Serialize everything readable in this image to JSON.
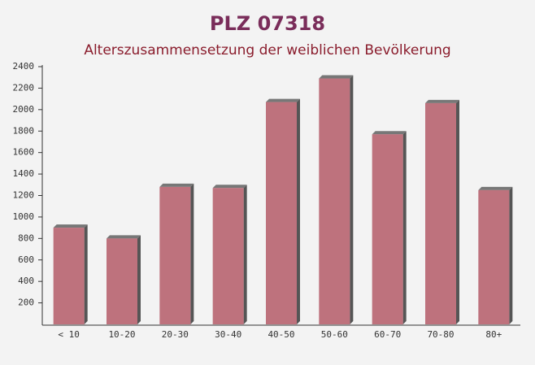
{
  "chart_data": {
    "type": "bar",
    "title": "PLZ 07318",
    "subtitle": "Alterszusammensetzung der weiblichen Bevölkerung",
    "categories": [
      "< 10",
      "10-20",
      "20-30",
      "30-40",
      "40-50",
      "50-60",
      "60-70",
      "70-80",
      "80+"
    ],
    "values": [
      900,
      800,
      1280,
      1270,
      2070,
      2290,
      1770,
      2060,
      1250
    ],
    "color": "#b86470",
    "ylim": [
      0,
      2400
    ],
    "yticks": [
      200,
      400,
      600,
      800,
      1000,
      1200,
      1400,
      1600,
      1800,
      2000,
      2200,
      2400
    ],
    "grid": false
  }
}
